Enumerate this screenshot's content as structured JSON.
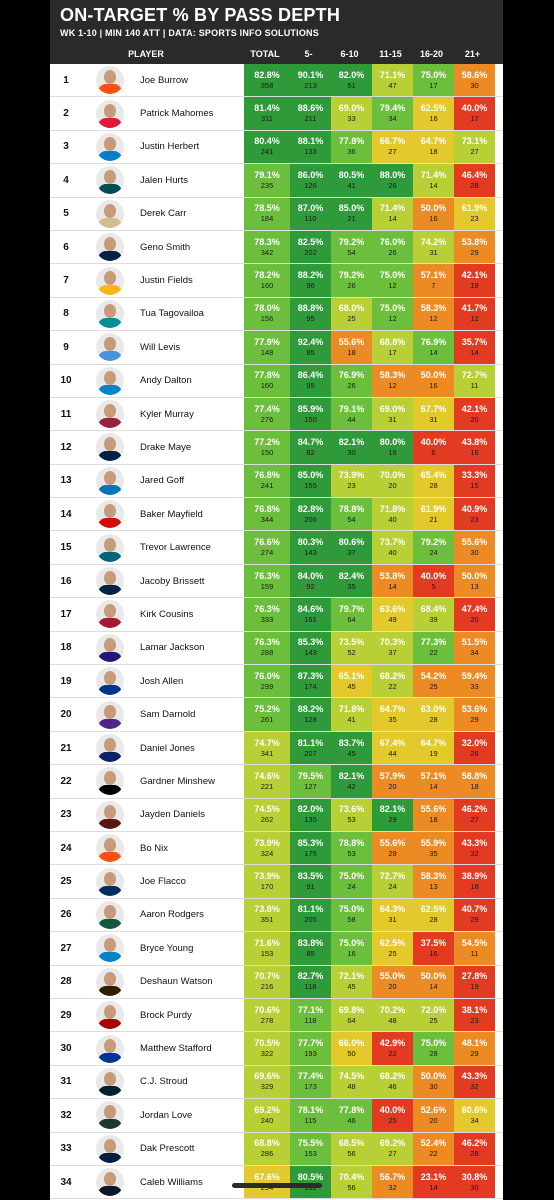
{
  "header": {
    "title": "ON-TARGET % BY PASS DEPTH",
    "subtitle": "WK 1-10 | MIN 140 ATT | DATA: SPORTS INFO SOLUTIONS"
  },
  "columns": {
    "player": "PLAYER",
    "total": "TOTAL",
    "d5": "5-",
    "d6_10": "6-10",
    "d11_15": "11-15",
    "d16_20": "16-20",
    "d21": "21+"
  },
  "colors": {
    "dark_green": "#2e9a3a",
    "green": "#6cbf3c",
    "yellow_green": "#b9cf36",
    "yellow": "#e3c92b",
    "orange": "#ec8a24",
    "red": "#e23b22"
  },
  "rows": [
    {
      "rank": "1",
      "name": "Joe Burrow",
      "team_color": "#fb4f14",
      "total": [
        "82.8%",
        "358"
      ],
      "d5": [
        "90.1%",
        "213"
      ],
      "d6_10": [
        "82.0%",
        "51"
      ],
      "d11_15": [
        "71.1%",
        "47"
      ],
      "d16_20": [
        "75.0%",
        "17"
      ],
      "d21": [
        "58.6%",
        "30"
      ]
    },
    {
      "rank": "2",
      "name": "Patrick Mahomes",
      "team_color": "#e31837",
      "total": [
        "81.4%",
        "311"
      ],
      "d5": [
        "88.6%",
        "211"
      ],
      "d6_10": [
        "69.0%",
        "33"
      ],
      "d11_15": [
        "79.4%",
        "34"
      ],
      "d16_20": [
        "62.5%",
        "16"
      ],
      "d21": [
        "40.0%",
        "17"
      ]
    },
    {
      "rank": "3",
      "name": "Justin Herbert",
      "team_color": "#0080c6",
      "total": [
        "80.4%",
        "241"
      ],
      "d5": [
        "88.1%",
        "133"
      ],
      "d6_10": [
        "77.8%",
        "36"
      ],
      "d11_15": [
        "66.7%",
        "27"
      ],
      "d16_20": [
        "64.7%",
        "18"
      ],
      "d21": [
        "73.1%",
        "27"
      ]
    },
    {
      "rank": "4",
      "name": "Jalen Hurts",
      "team_color": "#004c54",
      "total": [
        "79.1%",
        "235"
      ],
      "d5": [
        "86.0%",
        "126"
      ],
      "d6_10": [
        "80.5%",
        "41"
      ],
      "d11_15": [
        "88.0%",
        "26"
      ],
      "d16_20": [
        "71.4%",
        "14"
      ],
      "d21": [
        "46.4%",
        "28"
      ]
    },
    {
      "rank": "5",
      "name": "Derek Carr",
      "team_color": "#d3bc8d",
      "total": [
        "78.5%",
        "184"
      ],
      "d5": [
        "87.0%",
        "110"
      ],
      "d6_10": [
        "85.0%",
        "21"
      ],
      "d11_15": [
        "71.4%",
        "14"
      ],
      "d16_20": [
        "50.0%",
        "16"
      ],
      "d21": [
        "61.9%",
        "23"
      ]
    },
    {
      "rank": "6",
      "name": "Geno Smith",
      "team_color": "#002244",
      "total": [
        "78.3%",
        "342"
      ],
      "d5": [
        "82.5%",
        "202"
      ],
      "d6_10": [
        "79.2%",
        "54"
      ],
      "d11_15": [
        "76.0%",
        "26"
      ],
      "d16_20": [
        "74.2%",
        "31"
      ],
      "d21": [
        "53.8%",
        "29"
      ]
    },
    {
      "rank": "7",
      "name": "Justin Fields",
      "team_color": "#ffb612",
      "total": [
        "78.2%",
        "160"
      ],
      "d5": [
        "88.2%",
        "96"
      ],
      "d6_10": [
        "79.2%",
        "26"
      ],
      "d11_15": [
        "75.0%",
        "12"
      ],
      "d16_20": [
        "57.1%",
        "7"
      ],
      "d21": [
        "42.1%",
        "19"
      ]
    },
    {
      "rank": "8",
      "name": "Tua Tagovailoa",
      "team_color": "#008e97",
      "total": [
        "78.0%",
        "156"
      ],
      "d5": [
        "88.8%",
        "95"
      ],
      "d6_10": [
        "68.0%",
        "25"
      ],
      "d11_15": [
        "75.0%",
        "12"
      ],
      "d16_20": [
        "58.3%",
        "12"
      ],
      "d21": [
        "41.7%",
        "12"
      ]
    },
    {
      "rank": "9",
      "name": "Will Levis",
      "team_color": "#4b92db",
      "total": [
        "77.9%",
        "148"
      ],
      "d5": [
        "92.4%",
        "85"
      ],
      "d6_10": [
        "55.6%",
        "18"
      ],
      "d11_15": [
        "68.8%",
        "17"
      ],
      "d16_20": [
        "76.9%",
        "14"
      ],
      "d21": [
        "35.7%",
        "14"
      ]
    },
    {
      "rank": "10",
      "name": "Andy Dalton",
      "team_color": "#0085ca",
      "total": [
        "77.8%",
        "160"
      ],
      "d5": [
        "86.4%",
        "95"
      ],
      "d6_10": [
        "76.9%",
        "26"
      ],
      "d11_15": [
        "58.3%",
        "12"
      ],
      "d16_20": [
        "50.0%",
        "16"
      ],
      "d21": [
        "72.7%",
        "11"
      ]
    },
    {
      "rank": "11",
      "name": "Kyler Murray",
      "team_color": "#97233f",
      "total": [
        "77.4%",
        "276"
      ],
      "d5": [
        "85.9%",
        "150"
      ],
      "d6_10": [
        "79.1%",
        "44"
      ],
      "d11_15": [
        "69.0%",
        "31"
      ],
      "d16_20": [
        "67.7%",
        "31"
      ],
      "d21": [
        "42.1%",
        "20"
      ]
    },
    {
      "rank": "12",
      "name": "Drake Maye",
      "team_color": "#002244",
      "total": [
        "77.2%",
        "150"
      ],
      "d5": [
        "84.7%",
        "82"
      ],
      "d6_10": [
        "82.1%",
        "30"
      ],
      "d11_15": [
        "80.0%",
        "16"
      ],
      "d16_20": [
        "40.0%",
        "6"
      ],
      "d21": [
        "43.8%",
        "16"
      ]
    },
    {
      "rank": "13",
      "name": "Jared Goff",
      "team_color": "#0076b6",
      "total": [
        "76.8%",
        "241"
      ],
      "d5": [
        "85.0%",
        "155"
      ],
      "d6_10": [
        "73.9%",
        "23"
      ],
      "d11_15": [
        "70.0%",
        "20"
      ],
      "d16_20": [
        "65.4%",
        "28"
      ],
      "d21": [
        "33.3%",
        "15"
      ]
    },
    {
      "rank": "14",
      "name": "Baker Mayfield",
      "team_color": "#d50a0a",
      "total": [
        "76.8%",
        "344"
      ],
      "d5": [
        "82.8%",
        "206"
      ],
      "d6_10": [
        "78.8%",
        "54"
      ],
      "d11_15": [
        "71.8%",
        "40"
      ],
      "d16_20": [
        "61.9%",
        "21"
      ],
      "d21": [
        "40.9%",
        "23"
      ]
    },
    {
      "rank": "15",
      "name": "Trevor Lawrence",
      "team_color": "#006778",
      "total": [
        "76.6%",
        "274"
      ],
      "d5": [
        "80.3%",
        "143"
      ],
      "d6_10": [
        "80.6%",
        "37"
      ],
      "d11_15": [
        "73.7%",
        "40"
      ],
      "d16_20": [
        "79.2%",
        "24"
      ],
      "d21": [
        "55.6%",
        "30"
      ]
    },
    {
      "rank": "16",
      "name": "Jacoby Brissett",
      "team_color": "#002244",
      "total": [
        "76.3%",
        "159"
      ],
      "d5": [
        "84.0%",
        "92"
      ],
      "d6_10": [
        "82.4%",
        "35"
      ],
      "d11_15": [
        "53.8%",
        "14"
      ],
      "d16_20": [
        "40.0%",
        "5"
      ],
      "d21": [
        "50.0%",
        "13"
      ]
    },
    {
      "rank": "17",
      "name": "Kirk Cousins",
      "team_color": "#a71930",
      "total": [
        "76.3%",
        "333"
      ],
      "d5": [
        "84.6%",
        "161"
      ],
      "d6_10": [
        "79.7%",
        "64"
      ],
      "d11_15": [
        "63.6%",
        "49"
      ],
      "d16_20": [
        "68.4%",
        "39"
      ],
      "d21": [
        "47.4%",
        "20"
      ]
    },
    {
      "rank": "18",
      "name": "Lamar Jackson",
      "team_color": "#241773",
      "total": [
        "76.3%",
        "288"
      ],
      "d5": [
        "85.3%",
        "143"
      ],
      "d6_10": [
        "73.5%",
        "52"
      ],
      "d11_15": [
        "70.3%",
        "37"
      ],
      "d16_20": [
        "77.3%",
        "22"
      ],
      "d21": [
        "51.5%",
        "34"
      ]
    },
    {
      "rank": "19",
      "name": "Josh Allen",
      "team_color": "#00338d",
      "total": [
        "76.0%",
        "299"
      ],
      "d5": [
        "87.3%",
        "174"
      ],
      "d6_10": [
        "65.1%",
        "45"
      ],
      "d11_15": [
        "68.2%",
        "22"
      ],
      "d16_20": [
        "54.2%",
        "25"
      ],
      "d21": [
        "59.4%",
        "33"
      ]
    },
    {
      "rank": "20",
      "name": "Sam Darnold",
      "team_color": "#4f2683",
      "total": [
        "75.2%",
        "261"
      ],
      "d5": [
        "88.2%",
        "128"
      ],
      "d6_10": [
        "71.8%",
        "41"
      ],
      "d11_15": [
        "64.7%",
        "35"
      ],
      "d16_20": [
        "63.0%",
        "28"
      ],
      "d21": [
        "53.6%",
        "29"
      ]
    },
    {
      "rank": "21",
      "name": "Daniel Jones",
      "team_color": "#0b2265",
      "total": [
        "74.7%",
        "341"
      ],
      "d5": [
        "81.1%",
        "207"
      ],
      "d6_10": [
        "83.7%",
        "45"
      ],
      "d11_15": [
        "67.4%",
        "44"
      ],
      "d16_20": [
        "64.7%",
        "19"
      ],
      "d21": [
        "32.0%",
        "26"
      ]
    },
    {
      "rank": "22",
      "name": "Gardner Minshew",
      "team_color": "#000000",
      "total": [
        "74.6%",
        "221"
      ],
      "d5": [
        "79.5%",
        "127"
      ],
      "d6_10": [
        "82.1%",
        "42"
      ],
      "d11_15": [
        "57.9%",
        "20"
      ],
      "d16_20": [
        "57.1%",
        "14"
      ],
      "d21": [
        "58.8%",
        "18"
      ]
    },
    {
      "rank": "23",
      "name": "Jayden Daniels",
      "team_color": "#5a1414",
      "total": [
        "74.5%",
        "262"
      ],
      "d5": [
        "82.0%",
        "135"
      ],
      "d6_10": [
        "73.6%",
        "53"
      ],
      "d11_15": [
        "82.1%",
        "29"
      ],
      "d16_20": [
        "55.6%",
        "18"
      ],
      "d21": [
        "46.2%",
        "27"
      ]
    },
    {
      "rank": "24",
      "name": "Bo Nix",
      "team_color": "#fb4f14",
      "total": [
        "73.9%",
        "324"
      ],
      "d5": [
        "85.3%",
        "175"
      ],
      "d6_10": [
        "78.8%",
        "53"
      ],
      "d11_15": [
        "55.6%",
        "29"
      ],
      "d16_20": [
        "55.9%",
        "35"
      ],
      "d21": [
        "43.3%",
        "32"
      ]
    },
    {
      "rank": "25",
      "name": "Joe Flacco",
      "team_color": "#002c5f",
      "total": [
        "73.9%",
        "170"
      ],
      "d5": [
        "83.5%",
        "91"
      ],
      "d6_10": [
        "75.0%",
        "24"
      ],
      "d11_15": [
        "72.7%",
        "24"
      ],
      "d16_20": [
        "58.3%",
        "13"
      ],
      "d21": [
        "38.9%",
        "18"
      ]
    },
    {
      "rank": "26",
      "name": "Aaron Rodgers",
      "team_color": "#125740",
      "total": [
        "73.8%",
        "351"
      ],
      "d5": [
        "81.1%",
        "205"
      ],
      "d6_10": [
        "75.0%",
        "58"
      ],
      "d11_15": [
        "64.3%",
        "31"
      ],
      "d16_20": [
        "62.5%",
        "28"
      ],
      "d21": [
        "40.7%",
        "29"
      ]
    },
    {
      "rank": "27",
      "name": "Bryce Young",
      "team_color": "#0085ca",
      "total": [
        "71.6%",
        "153"
      ],
      "d5": [
        "83.8%",
        "85"
      ],
      "d6_10": [
        "75.0%",
        "16"
      ],
      "d11_15": [
        "62.5%",
        "25"
      ],
      "d16_20": [
        "37.5%",
        "16"
      ],
      "d21": [
        "54.5%",
        "11"
      ]
    },
    {
      "rank": "28",
      "name": "Deshaun Watson",
      "team_color": "#311d00",
      "total": [
        "70.7%",
        "216"
      ],
      "d5": [
        "82.7%",
        "118"
      ],
      "d6_10": [
        "72.1%",
        "45"
      ],
      "d11_15": [
        "55.0%",
        "20"
      ],
      "d16_20": [
        "50.0%",
        "14"
      ],
      "d21": [
        "27.8%",
        "19"
      ]
    },
    {
      "rank": "29",
      "name": "Brock Purdy",
      "team_color": "#aa0000",
      "total": [
        "70.6%",
        "278"
      ],
      "d5": [
        "77.1%",
        "118"
      ],
      "d6_10": [
        "69.8%",
        "64"
      ],
      "d11_15": [
        "70.2%",
        "48"
      ],
      "d16_20": [
        "72.0%",
        "25"
      ],
      "d21": [
        "38.1%",
        "23"
      ]
    },
    {
      "rank": "30",
      "name": "Matthew Stafford",
      "team_color": "#003594",
      "total": [
        "70.5%",
        "322"
      ],
      "d5": [
        "77.7%",
        "193"
      ],
      "d6_10": [
        "66.0%",
        "50"
      ],
      "d11_15": [
        "42.9%",
        "22"
      ],
      "d16_20": [
        "75.0%",
        "28"
      ],
      "d21": [
        "48.1%",
        "29"
      ]
    },
    {
      "rank": "31",
      "name": "C.J. Stroud",
      "team_color": "#03202f",
      "total": [
        "69.6%",
        "329"
      ],
      "d5": [
        "77.4%",
        "173"
      ],
      "d6_10": [
        "74.5%",
        "48"
      ],
      "d11_15": [
        "68.2%",
        "46"
      ],
      "d16_20": [
        "50.0%",
        "30"
      ],
      "d21": [
        "43.3%",
        "32"
      ]
    },
    {
      "rank": "32",
      "name": "Jordan Love",
      "team_color": "#203731",
      "total": [
        "69.2%",
        "240"
      ],
      "d5": [
        "78.1%",
        "115"
      ],
      "d6_10": [
        "77.8%",
        "46"
      ],
      "d11_15": [
        "40.0%",
        "25"
      ],
      "d16_20": [
        "52.6%",
        "20"
      ],
      "d21": [
        "60.6%",
        "34"
      ]
    },
    {
      "rank": "33",
      "name": "Dak Prescott",
      "team_color": "#041e42",
      "total": [
        "68.8%",
        "286"
      ],
      "d5": [
        "75.5%",
        "153"
      ],
      "d6_10": [
        "68.5%",
        "56"
      ],
      "d11_15": [
        "69.2%",
        "27"
      ],
      "d16_20": [
        "52.4%",
        "22"
      ],
      "d21": [
        "46.2%",
        "28"
      ]
    },
    {
      "rank": "34",
      "name": "Caleb Williams",
      "team_color": "#0b162a",
      "total": [
        "67.6%",
        "294"
      ],
      "d5": [
        "80.5%",
        "162"
      ],
      "d6_10": [
        "70.4%",
        "56"
      ],
      "d11_15": [
        "56.7%",
        "32"
      ],
      "d16_20": [
        "23.1%",
        "14"
      ],
      "d21": [
        "30.8%",
        "30"
      ]
    }
  ]
}
